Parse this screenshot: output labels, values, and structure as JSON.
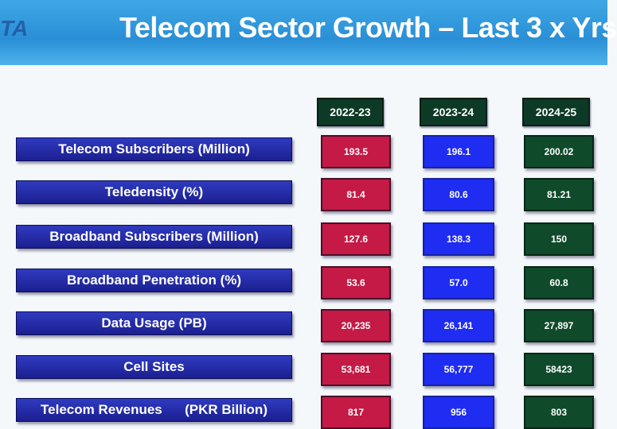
{
  "logo_text": "TA",
  "title": "Telecom Sector Growth – Last 3 x Yrs",
  "years": [
    "2022-23",
    "2023-24",
    "2024-25"
  ],
  "rows": [
    {
      "label": "Telecom Subscribers (Million)",
      "values": [
        "193.5",
        "196.1",
        "200.02"
      ]
    },
    {
      "label": "Teledensity (%)",
      "values": [
        "81.4",
        "80.6",
        "81.21"
      ]
    },
    {
      "label": "Broadband Subscribers (Million)",
      "values": [
        "127.6",
        "138.3",
        "150"
      ]
    },
    {
      "label": "Broadband Penetration (%)",
      "values": [
        "53.6",
        "57.0",
        "60.8"
      ]
    },
    {
      "label": "Data Usage (PB)",
      "values": [
        "20,235",
        "26,141",
        "27,897"
      ]
    },
    {
      "label": "Cell Sites",
      "values": [
        "53,681",
        "56,777",
        "58423"
      ]
    },
    {
      "label": "Telecom Revenues      (PKR Billion)",
      "values": [
        "817",
        "956",
        "803"
      ]
    }
  ],
  "colors": {
    "col_2022": "#c41a45",
    "col_2023": "#1f2cf2",
    "col_2024": "#0f4a2a",
    "label_bg": "#1b1f8f"
  }
}
